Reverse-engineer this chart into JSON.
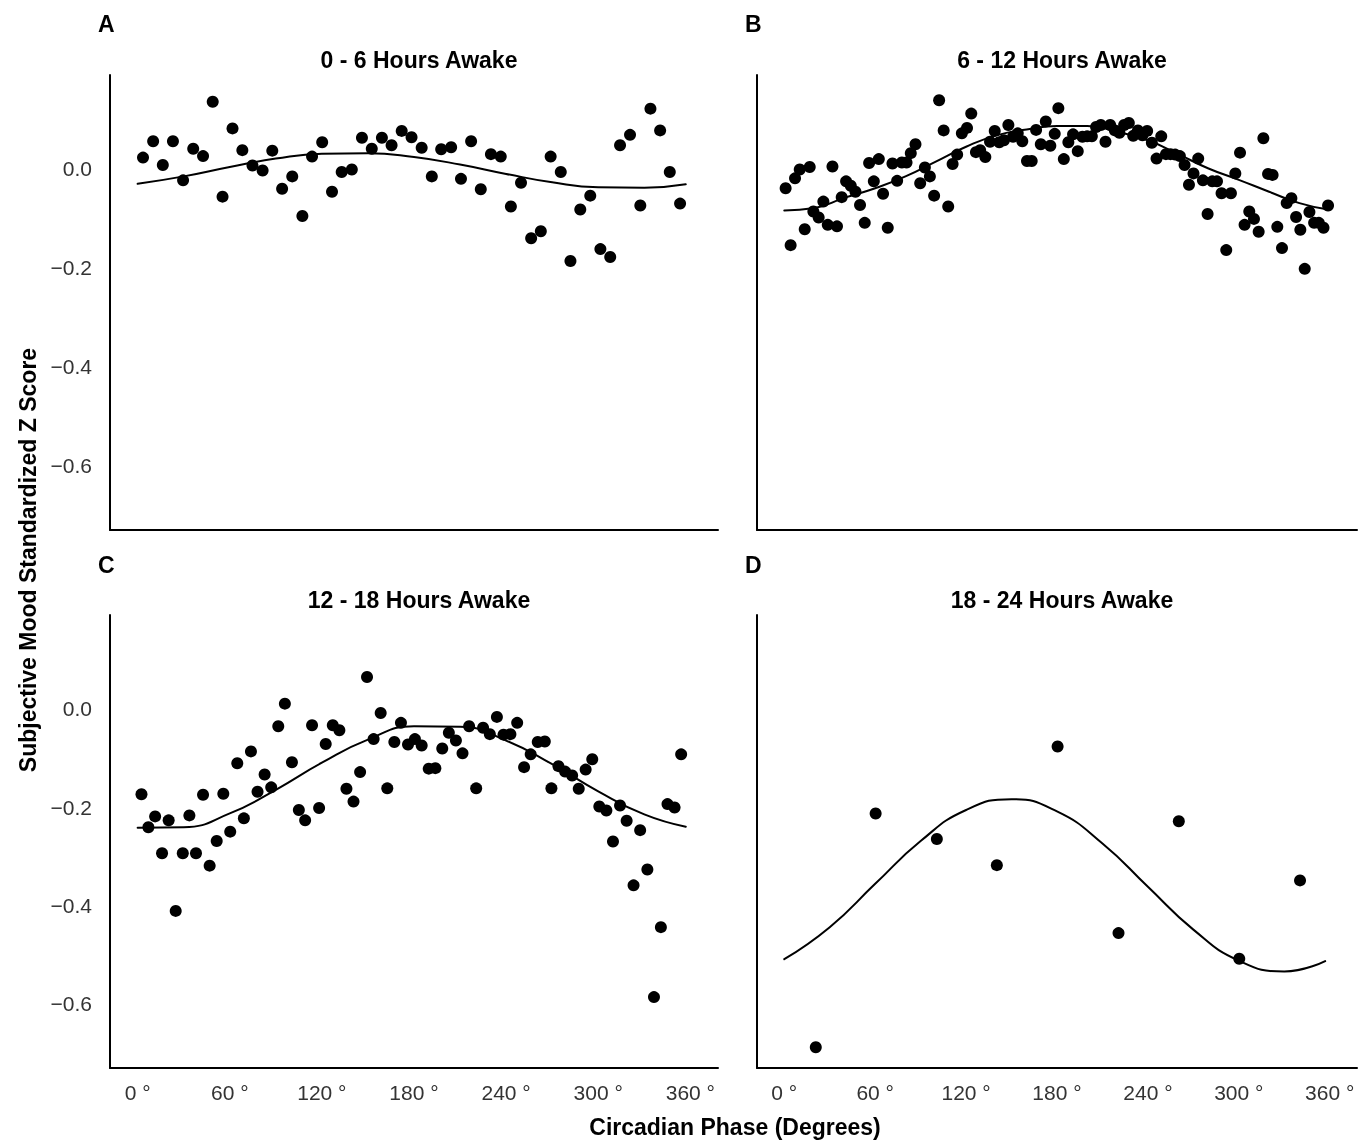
{
  "chart_data": [
    {
      "type": "scatter",
      "title": "0 - 6 Hours Awake",
      "annotations": [
        "A"
      ],
      "ylabel": "Subjective Mood Standardized Z Score",
      "xlim": [
        -18,
        378
      ],
      "ylim": [
        -0.73,
        0.19
      ],
      "yticks": [
        {
          "value": 0,
          "label": "0.0"
        },
        {
          "value": -0.2,
          "label": "−0.2"
        },
        {
          "value": -0.4,
          "label": "−0.4"
        },
        {
          "value": -0.6,
          "label": "−0.6"
        }
      ],
      "tick_labels": "y",
      "grid": false,
      "series": [
        {
          "marker": "circle",
          "color": "#000000",
          "x": [
            3.5,
            10.1,
            16.4,
            23.0,
            29.6,
            36.2,
            42.6,
            48.9,
            55.3,
            61.8,
            68.2,
            74.8,
            81.4,
            87.7,
            94.1,
            100.7,
            107.3,
            113.6,
            120.2,
            126.6,
            132.9,
            139.5,
            146.1,
            152.5,
            159.1,
            165.4,
            172.0,
            178.4,
            185.0,
            191.6,
            197.7,
            204.2,
            210.6,
            217.2,
            223.5,
            230.1,
            236.5,
            243.1,
            249.7,
            256.3,
            262.6,
            269.0,
            275.6,
            281.9,
            288.3,
            294.8,
            301.4,
            307.8,
            314.2,
            320.7,
            327.4,
            334.0,
            340.3,
            346.6,
            353.3
          ],
          "values": [
            0.023,
            0.056,
            0.008,
            0.056,
            -0.023,
            0.041,
            0.026,
            0.136,
            -0.056,
            0.082,
            0.038,
            0.007,
            -0.003,
            0.037,
            -0.04,
            -0.015,
            -0.095,
            0.025,
            0.054,
            -0.046,
            -0.006,
            -0.001,
            0.063,
            0.041,
            0.063,
            0.048,
            0.077,
            0.064,
            0.043,
            -0.015,
            0.04,
            0.044,
            -0.02,
            0.056,
            -0.041,
            0.03,
            0.025,
            -0.076,
            -0.028,
            -0.14,
            -0.126,
            0.025,
            -0.006,
            -0.186,
            -0.082,
            -0.054,
            -0.162,
            -0.178,
            0.048,
            0.069,
            -0.074,
            0.122,
            0.078,
            -0.006,
            -0.07
          ]
        },
        {
          "type": "line",
          "color": "#000000",
          "line_style": "solid",
          "x": [
            0,
            30,
            60,
            90,
            120,
            150,
            180,
            210,
            240,
            270,
            300,
            330,
            357
          ],
          "marker": "none",
          "values": [
            -0.03,
            -0.015,
            0.004,
            0.021,
            0.031,
            0.032,
            0.024,
            0.009,
            -0.01,
            -0.027,
            -0.037,
            -0.038,
            -0.031
          ]
        }
      ]
    },
    {
      "type": "scatter",
      "title": "6 - 12 Hours Awake",
      "annotations": [
        "B"
      ],
      "xlim": [
        -18,
        378
      ],
      "ylim": [
        -0.73,
        0.19
      ],
      "tick_labels": false,
      "grid": false,
      "series": [
        {
          "marker": "circle",
          "color": "#000000",
          "x": [
            0.9,
            4.2,
            7.1,
            10.2,
            13.5,
            16.8,
            19.2,
            22.7,
            25.8,
            28.7,
            31.8,
            34.8,
            37.9,
            40.8,
            43.9,
            47.0,
            50.0,
            53.1,
            56.0,
            59.1,
            62.4,
            65.2,
            68.3,
            71.4,
            74.5,
            77.6,
            80.7,
            83.5,
            86.6,
            89.7,
            92.8,
            96.1,
            98.9,
            102.2,
            105.2,
            108.2,
            111.1,
            114.1,
            117.2,
            120.6,
            123.4,
            126.5,
            129.3,
            132.7,
            135.8,
            138.9,
            141.9,
            145.0,
            147.9,
            151.0,
            154.1,
            157.1,
            160.2,
            163.3,
            166.2,
            169.3,
            172.6,
            175.6,
            178.5,
            180.9,
            184.5,
            187.5,
            190.6,
            193.7,
            196.8,
            199.9,
            203.0,
            205.8,
            208.9,
            212.0,
            215.1,
            218.2,
            221.2,
            224.3,
            227.4,
            230.3,
            233.4,
            236.4,
            239.5,
            242.6,
            245.7,
            248.8,
            251.9,
            254.9,
            258.0,
            261.1,
            264.2,
            267.1,
            270.1,
            273.2,
            276.3,
            279.4,
            282.5,
            285.6,
            288.6,
            291.7,
            294.8,
            297.7,
            300.8,
            303.8,
            306.9,
            310.0,
            313.1,
            316.2,
            319.3,
            322.3,
            325.4,
            328.5,
            331.6,
            334.7,
            337.8,
            340.6,
            343.5,
            346.6,
            349.7,
            352.8,
            355.9,
            358.9
          ],
          "values": [
            -0.039,
            -0.154,
            -0.019,
            -0.001,
            -0.122,
            0.004,
            -0.086,
            -0.098,
            -0.066,
            -0.113,
            0.005,
            -0.116,
            -0.057,
            -0.025,
            -0.034,
            -0.046,
            -0.073,
            -0.109,
            0.012,
            -0.025,
            0.02,
            -0.05,
            -0.119,
            0.011,
            -0.024,
            0.013,
            0.013,
            0.032,
            0.05,
            -0.029,
            0.003,
            -0.015,
            -0.054,
            0.139,
            0.078,
            -0.076,
            0.01,
            0.029,
            0.072,
            0.083,
            0.112,
            0.034,
            0.038,
            0.024,
            0.055,
            0.077,
            0.054,
            0.058,
            0.089,
            0.065,
            0.072,
            0.056,
            0.016,
            0.016,
            0.079,
            0.05,
            0.096,
            0.047,
            0.071,
            0.123,
            0.02,
            0.054,
            0.07,
            0.036,
            0.065,
            0.066,
            0.066,
            0.085,
            0.089,
            0.055,
            0.089,
            0.078,
            0.073,
            0.089,
            0.093,
            0.067,
            0.078,
            0.068,
            0.077,
            0.053,
            0.021,
            0.066,
            0.03,
            0.03,
            0.029,
            0.026,
            0.008,
            -0.032,
            -0.009,
            0.021,
            -0.023,
            -0.091,
            -0.025,
            -0.025,
            -0.049,
            -0.164,
            -0.049,
            -0.009,
            0.033,
            -0.113,
            -0.086,
            -0.101,
            -0.127,
            0.062,
            -0.01,
            -0.012,
            -0.117,
            -0.16,
            -0.069,
            -0.059,
            -0.097,
            -0.123,
            -0.202,
            -0.087,
            -0.109,
            -0.109,
            -0.119,
            -0.074
          ]
        },
        {
          "type": "line",
          "color": "#000000",
          "line_style": "solid",
          "x": [
            0,
            20,
            40,
            60,
            80,
            100,
            120,
            140,
            160,
            180,
            200,
            220,
            240,
            260,
            280,
            300,
            320,
            340,
            359
          ],
          "marker": "none",
          "values": [
            -0.084,
            -0.079,
            -0.058,
            -0.039,
            -0.015,
            0.015,
            0.045,
            0.068,
            0.08,
            0.087,
            0.087,
            0.075,
            0.058,
            0.03,
            0.001,
            -0.022,
            -0.046,
            -0.069,
            -0.082
          ]
        }
      ]
    },
    {
      "type": "scatter",
      "title": "12 - 18 Hours Awake",
      "annotations": [
        "C"
      ],
      "xlabel": "Circadian Phase (Degrees)",
      "xlim": [
        -18,
        378
      ],
      "ylim": [
        -0.73,
        0.19
      ],
      "xticks": [
        {
          "value": 0,
          "label": "0 °"
        },
        {
          "value": 60,
          "label": "60 °"
        },
        {
          "value": 120,
          "label": "120 °"
        },
        {
          "value": 180,
          "label": "180 °"
        },
        {
          "value": 240,
          "label": "240 °"
        },
        {
          "value": 300,
          "label": "300 °"
        },
        {
          "value": 360,
          "label": "360 °"
        }
      ],
      "yticks": [
        {
          "value": 0,
          "label": "0.0"
        },
        {
          "value": -0.2,
          "label": "−0.2"
        },
        {
          "value": -0.4,
          "label": "−0.4"
        },
        {
          "value": -0.6,
          "label": "−0.6"
        }
      ],
      "grid": false,
      "series": [
        {
          "marker": "circle",
          "color": "#000000",
          "x": [
            2.5,
            7.0,
            11.4,
            15.9,
            20.2,
            24.8,
            29.4,
            33.7,
            38.0,
            42.6,
            46.9,
            51.5,
            55.8,
            60.3,
            64.9,
            69.2,
            73.8,
            78.1,
            82.7,
            87.0,
            91.6,
            95.9,
            100.5,
            105.0,
            109.1,
            113.6,
            118.2,
            122.5,
            127.1,
            131.4,
            136.0,
            140.6,
            144.9,
            149.4,
            153.7,
            158.3,
            162.6,
            167.2,
            171.5,
            176.1,
            180.6,
            185.0,
            189.6,
            193.9,
            198.4,
            202.7,
            207.3,
            211.6,
            215.9,
            220.5,
            225.0,
            229.4,
            234.0,
            238.3,
            242.8,
            247.2,
            251.7,
            256.0,
            260.6,
            265.2,
            269.5,
            274.1,
            278.4,
            283.0,
            287.3,
            291.8,
            296.1,
            300.7,
            305.3,
            309.6,
            314.2,
            318.5,
            323.0,
            327.3,
            332.0,
            336.3,
            340.8,
            345.1,
            349.7,
            354.0
          ],
          "values": [
            -0.174,
            -0.241,
            -0.219,
            -0.294,
            -0.227,
            -0.411,
            -0.294,
            -0.217,
            -0.294,
            -0.175,
            -0.319,
            -0.269,
            -0.173,
            -0.25,
            -0.111,
            -0.223,
            -0.087,
            -0.169,
            -0.134,
            -0.16,
            -0.036,
            0.01,
            -0.109,
            -0.206,
            -0.227,
            -0.034,
            -0.202,
            -0.072,
            -0.034,
            -0.044,
            -0.163,
            -0.189,
            -0.129,
            0.064,
            -0.062,
            -0.009,
            -0.162,
            -0.068,
            -0.029,
            -0.073,
            -0.062,
            -0.075,
            -0.122,
            -0.121,
            -0.081,
            -0.049,
            -0.065,
            -0.091,
            -0.036,
            -0.162,
            -0.039,
            -0.052,
            -0.017,
            -0.053,
            -0.052,
            -0.029,
            -0.119,
            -0.093,
            -0.068,
            -0.067,
            -0.162,
            -0.117,
            -0.128,
            -0.136,
            -0.163,
            -0.124,
            -0.103,
            -0.199,
            -0.207,
            -0.27,
            -0.197,
            -0.228,
            -0.359,
            -0.247,
            -0.327,
            -0.586,
            -0.444,
            -0.194,
            -0.201,
            -0.093
          ]
        },
        {
          "type": "line",
          "color": "#000000",
          "line_style": "solid",
          "x": [
            0,
            30,
            60,
            90,
            120,
            150,
            180,
            210,
            240,
            270,
            300,
            330,
            357
          ],
          "marker": "none",
          "values": [
            -0.242,
            -0.241,
            -0.213,
            -0.165,
            -0.11,
            -0.063,
            -0.036,
            -0.037,
            -0.065,
            -0.113,
            -0.168,
            -0.215,
            -0.24
          ]
        }
      ]
    },
    {
      "type": "scatter",
      "title": "18 - 24 Hours Awake",
      "annotations": [
        "D"
      ],
      "xlim": [
        -18,
        378
      ],
      "ylim": [
        -0.73,
        0.19
      ],
      "xticks": [
        {
          "value": 0,
          "label": "0 °"
        },
        {
          "value": 60,
          "label": "60 °"
        },
        {
          "value": 120,
          "label": "120 °"
        },
        {
          "value": 180,
          "label": "180 °"
        },
        {
          "value": 240,
          "label": "240 °"
        },
        {
          "value": 300,
          "label": "300 °"
        },
        {
          "value": 360,
          "label": "360 °"
        }
      ],
      "tick_labels": "x",
      "grid": false,
      "series": [
        {
          "marker": "circle",
          "color": "#000000",
          "x": [
            20.8,
            60.3,
            100.7,
            140.3,
            180.4,
            220.6,
            260.4,
            300.3,
            340.4
          ],
          "values": [
            -0.688,
            -0.213,
            -0.265,
            -0.318,
            -0.077,
            -0.456,
            -0.229,
            -0.508,
            -0.349
          ]
        },
        {
          "type": "line",
          "color": "#000000",
          "line_style": "solid",
          "x": [
            0,
            30,
            60,
            90,
            120,
            150,
            180,
            210,
            240,
            270,
            300,
            330,
            357
          ],
          "marker": "none",
          "values": [
            -0.509,
            -0.444,
            -0.356,
            -0.269,
            -0.206,
            -0.184,
            -0.209,
            -0.274,
            -0.362,
            -0.449,
            -0.512,
            -0.534,
            -0.513
          ]
        }
      ]
    }
  ]
}
